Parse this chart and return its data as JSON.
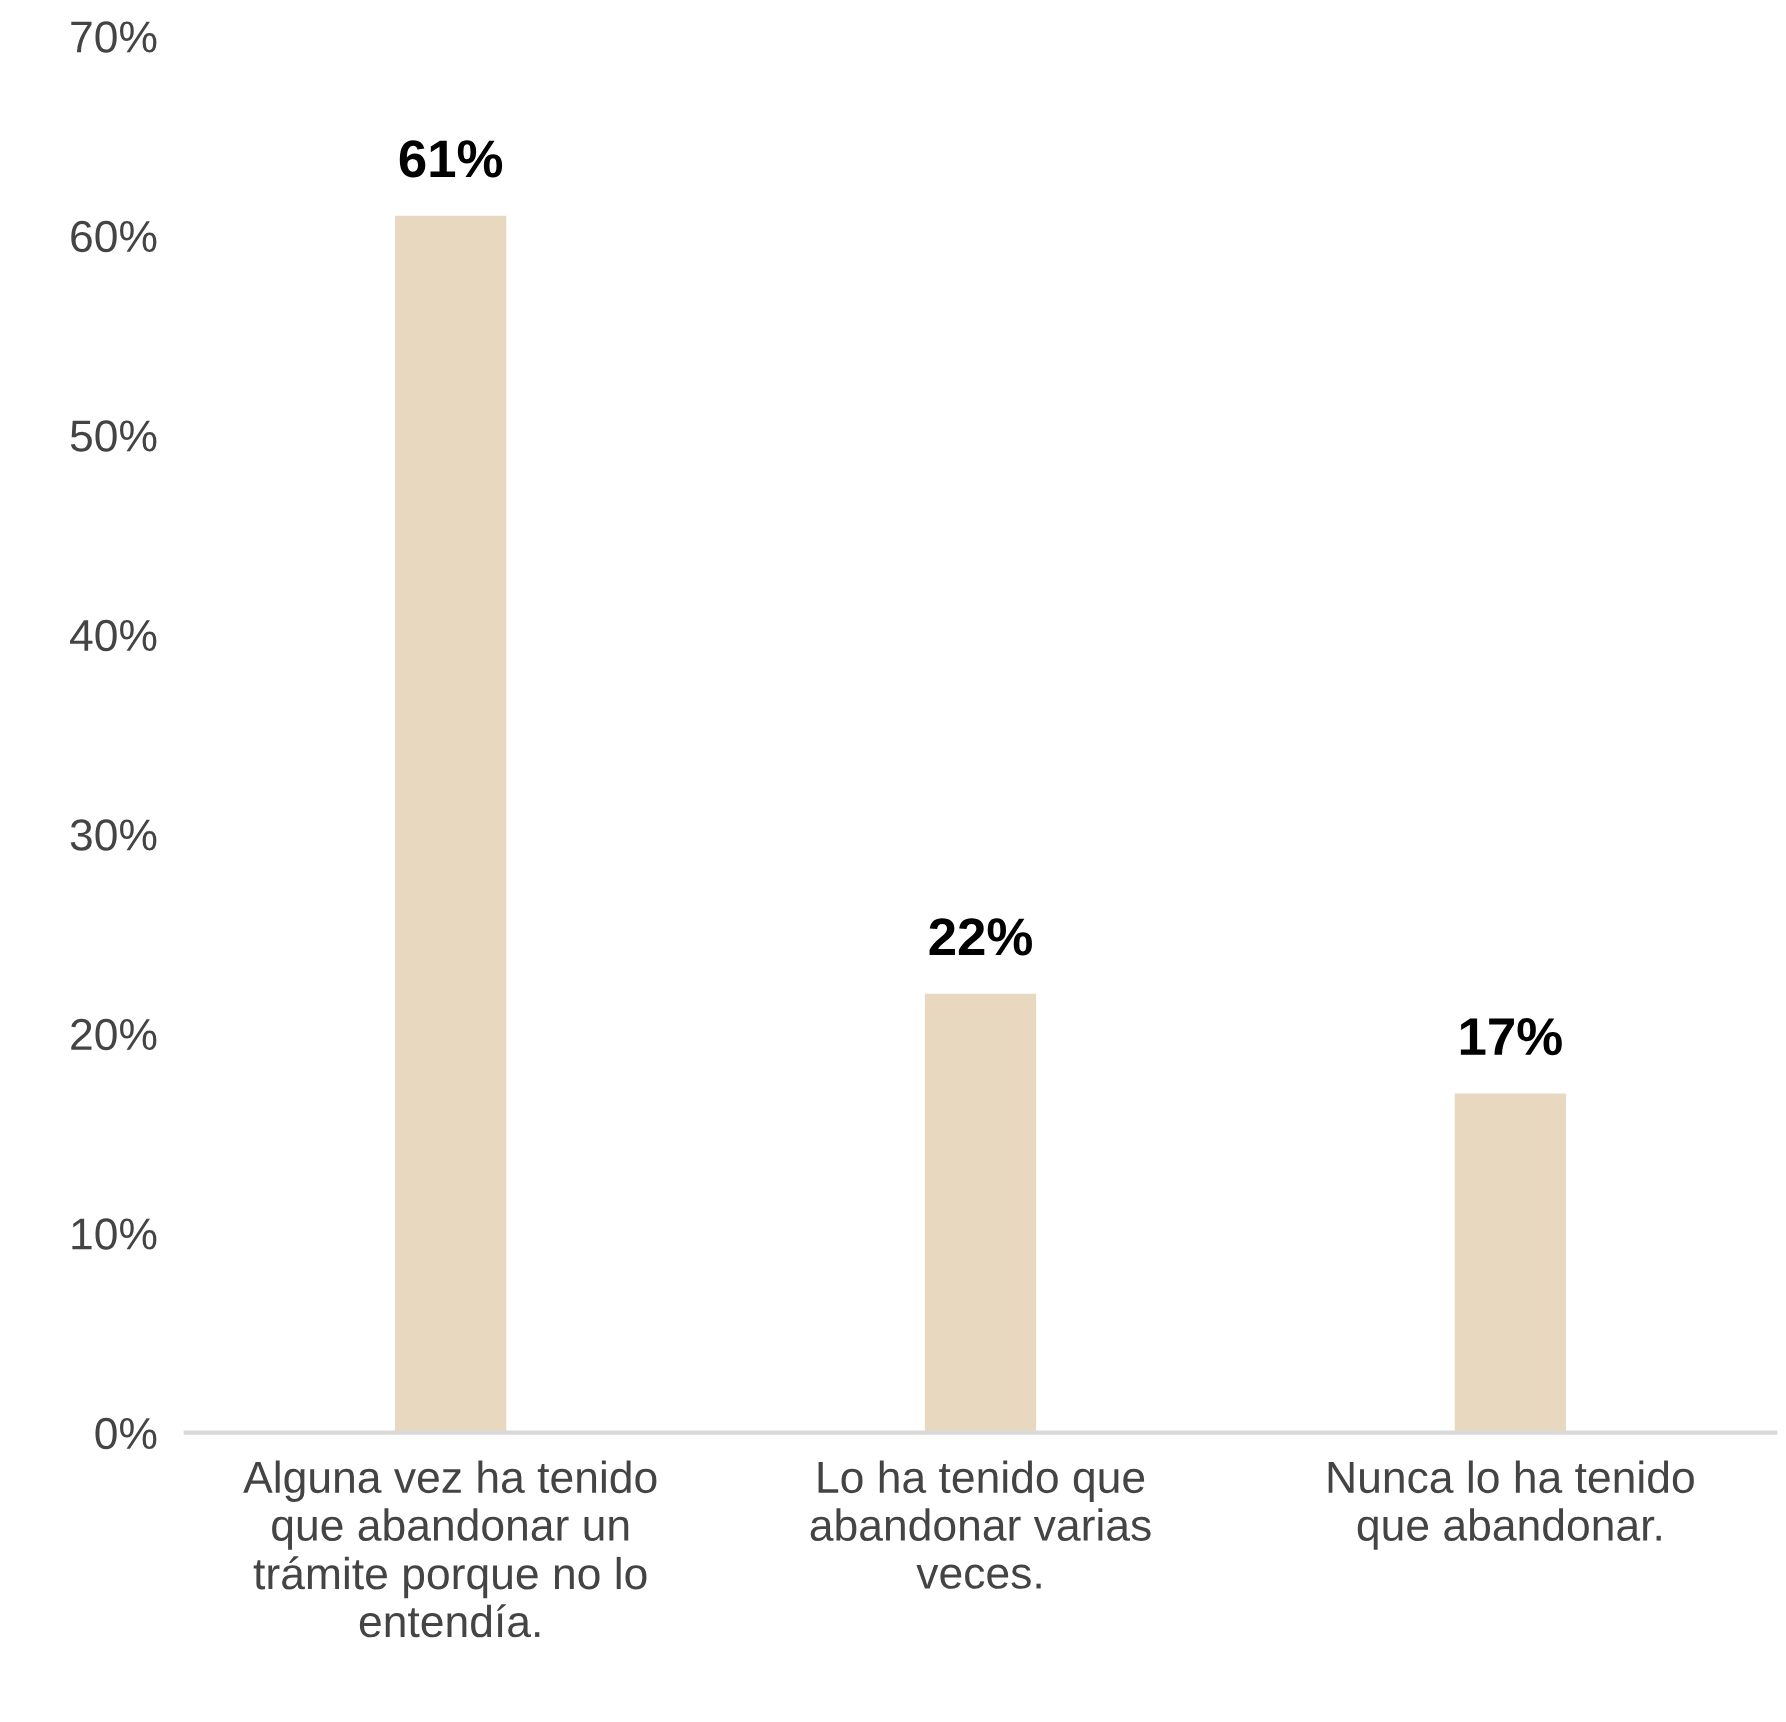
{
  "chart_data": {
    "type": "bar",
    "categories": [
      "Alguna vez ha tenido\nque abandonar un\ntrámite porque no lo\nentendía.",
      "Lo ha tenido que\nabandonar varias\nveces.",
      "Nunca lo ha tenido\nque abandonar."
    ],
    "values": [
      61,
      22,
      17
    ],
    "value_labels": [
      "61%",
      "22%",
      "17%"
    ],
    "color": "#e8d8bf",
    "ylim": [
      0,
      70
    ],
    "yticks": [
      {
        "value": 0,
        "label": "0%"
      },
      {
        "value": 10,
        "label": "10%"
      },
      {
        "value": 20,
        "label": "20%"
      },
      {
        "value": 30,
        "label": "30%"
      },
      {
        "value": 40,
        "label": "40%"
      },
      {
        "value": 50,
        "label": "50%"
      },
      {
        "value": 60,
        "label": "60%"
      },
      {
        "value": 70,
        "label": "70%"
      }
    ],
    "grid": false,
    "legend": false
  }
}
